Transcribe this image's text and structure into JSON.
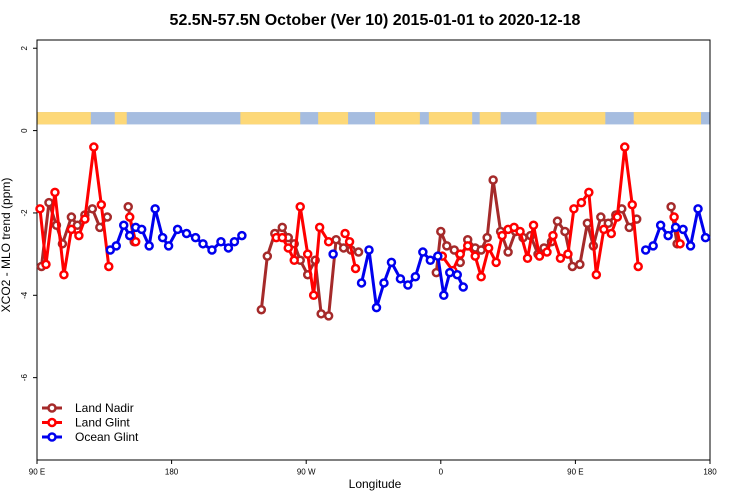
{
  "chart_data": {
    "type": "line",
    "title": "52.5N-57.5N October (Ver 10)   2015-01-01 to 2020-12-18",
    "xlabel": "Longitude",
    "ylabel": "XCO2 - MLO trend (ppm)",
    "x_ticks": [
      {
        "value": 90,
        "label": "90 E"
      },
      {
        "value": 180,
        "label": "180"
      },
      {
        "value": 270,
        "label": "90 W"
      },
      {
        "value": 360,
        "label": "0"
      },
      {
        "value": 450,
        "label": "90 E"
      },
      {
        "value": 540,
        "label": "180"
      }
    ],
    "y_ticks": [
      {
        "value": 2,
        "label": "2"
      },
      {
        "value": 0,
        "label": "0"
      },
      {
        "value": -2,
        "label": "-2"
      },
      {
        "value": -4,
        "label": "-4"
      },
      {
        "value": -6,
        "label": "-6"
      }
    ],
    "xlim": [
      90,
      540
    ],
    "ylim": [
      -8,
      2.2
    ],
    "land_mask_band": {
      "y_range": [
        0.15,
        0.45
      ],
      "land_color": "#fdd878",
      "ocean_color": "#a6bde0",
      "land_segments": [
        [
          90,
          126
        ],
        [
          142,
          150
        ],
        [
          226,
          266
        ],
        [
          278,
          298
        ],
        [
          316,
          346
        ],
        [
          352,
          381
        ],
        [
          386,
          400
        ],
        [
          424,
          470
        ],
        [
          489,
          534
        ]
      ]
    },
    "legend": {
      "position": "bottom-left"
    },
    "series": [
      {
        "name": "Land Nadir",
        "color": "#a52a2a",
        "points": [
          [
            93,
            -3.3
          ],
          [
            98,
            -1.75
          ],
          [
            103,
            -2.3
          ],
          [
            107,
            -2.75
          ],
          [
            113,
            -2.1
          ],
          [
            117,
            -2.3
          ],
          [
            122,
            -2.05
          ],
          [
            127,
            -1.9
          ],
          [
            132,
            -2.35
          ],
          [
            137,
            -2.1
          ],
          [
            151,
            -1.85
          ],
          [
            155,
            -2.7
          ],
          [
            240,
            -4.35
          ],
          [
            244,
            -3.05
          ],
          [
            249,
            -2.5
          ],
          [
            254,
            -2.35
          ],
          [
            258,
            -2.6
          ],
          [
            262,
            -2.75
          ],
          [
            266,
            -3.15
          ],
          [
            271,
            -3.5
          ],
          [
            276,
            -3.15
          ],
          [
            280,
            -4.45
          ],
          [
            285,
            -4.5
          ],
          [
            290,
            -2.65
          ],
          [
            295,
            -2.85
          ],
          [
            300,
            -2.9
          ],
          [
            305,
            -2.95
          ],
          [
            357,
            -3.45
          ],
          [
            360,
            -2.45
          ],
          [
            364,
            -2.8
          ],
          [
            369,
            -2.9
          ],
          [
            373,
            -3.2
          ],
          [
            378,
            -2.65
          ],
          [
            383,
            -2.85
          ],
          [
            387,
            -2.9
          ],
          [
            391,
            -2.6
          ],
          [
            395,
            -1.2
          ],
          [
            400,
            -2.45
          ],
          [
            405,
            -2.95
          ],
          [
            410,
            -2.45
          ],
          [
            415,
            -2.6
          ],
          [
            420,
            -2.55
          ],
          [
            425,
            -3.0
          ],
          [
            429,
            -2.85
          ],
          [
            434,
            -2.7
          ],
          [
            438,
            -2.2
          ],
          [
            443,
            -2.45
          ],
          [
            448,
            -3.3
          ],
          [
            453,
            -3.25
          ],
          [
            458,
            -2.25
          ],
          [
            462,
            -2.8
          ],
          [
            467,
            -2.1
          ],
          [
            472,
            -2.25
          ],
          [
            477,
            -2.05
          ],
          [
            481,
            -1.9
          ],
          [
            486,
            -2.35
          ],
          [
            491,
            -2.15
          ],
          [
            514,
            -1.85
          ],
          [
            518,
            -2.75
          ]
        ]
      },
      {
        "name": "Land Glint",
        "color": "#ff0000",
        "points": [
          [
            92,
            -1.9
          ],
          [
            96,
            -3.25
          ],
          [
            102,
            -1.5
          ],
          [
            108,
            -3.5
          ],
          [
            113,
            -2.4
          ],
          [
            118,
            -2.55
          ],
          [
            122,
            -2.15
          ],
          [
            128,
            -0.4
          ],
          [
            133,
            -1.8
          ],
          [
            138,
            -3.3
          ],
          [
            152,
            -2.1
          ],
          [
            156,
            -2.7
          ],
          [
            250,
            -2.6
          ],
          [
            254,
            -2.6
          ],
          [
            258,
            -2.85
          ],
          [
            262,
            -3.15
          ],
          [
            266,
            -1.85
          ],
          [
            271,
            -3.0
          ],
          [
            275,
            -4.0
          ],
          [
            279,
            -2.35
          ],
          [
            285,
            -2.7
          ],
          [
            296,
            -2.5
          ],
          [
            299,
            -2.7
          ],
          [
            303,
            -3.35
          ],
          [
            361,
            -3.05
          ],
          [
            368,
            -3.4
          ],
          [
            373,
            -3.0
          ],
          [
            378,
            -2.8
          ],
          [
            383,
            -3.05
          ],
          [
            387,
            -3.55
          ],
          [
            392,
            -2.85
          ],
          [
            397,
            -3.2
          ],
          [
            401,
            -2.55
          ],
          [
            405,
            -2.4
          ],
          [
            409,
            -2.35
          ],
          [
            413,
            -2.45
          ],
          [
            418,
            -3.1
          ],
          [
            422,
            -2.3
          ],
          [
            426,
            -3.05
          ],
          [
            431,
            -2.95
          ],
          [
            435,
            -2.55
          ],
          [
            440,
            -3.1
          ],
          [
            445,
            -3.0
          ],
          [
            449,
            -1.9
          ],
          [
            454,
            -1.75
          ],
          [
            459,
            -1.5
          ],
          [
            464,
            -3.5
          ],
          [
            469,
            -2.4
          ],
          [
            474,
            -2.5
          ],
          [
            478,
            -2.1
          ],
          [
            483,
            -0.4
          ],
          [
            488,
            -1.8
          ],
          [
            492,
            -3.3
          ],
          [
            516,
            -2.1
          ],
          [
            520,
            -2.75
          ]
        ]
      },
      {
        "name": "Ocean Glint",
        "color": "#0000ee",
        "points": [
          [
            139,
            -2.9
          ],
          [
            143,
            -2.8
          ],
          [
            148,
            -2.3
          ],
          [
            152,
            -2.55
          ],
          [
            156,
            -2.35
          ],
          [
            160,
            -2.4
          ],
          [
            165,
            -2.8
          ],
          [
            169,
            -1.9
          ],
          [
            174,
            -2.6
          ],
          [
            178,
            -2.8
          ],
          [
            184,
            -2.4
          ],
          [
            190,
            -2.5
          ],
          [
            196,
            -2.6
          ],
          [
            201,
            -2.75
          ],
          [
            207,
            -2.9
          ],
          [
            213,
            -2.7
          ],
          [
            218,
            -2.85
          ],
          [
            222,
            -2.7
          ],
          [
            227,
            -2.55
          ],
          [
            288,
            -3.0
          ],
          [
            307,
            -3.7
          ],
          [
            312,
            -2.9
          ],
          [
            317,
            -4.3
          ],
          [
            322,
            -3.7
          ],
          [
            327,
            -3.2
          ],
          [
            333,
            -3.6
          ],
          [
            338,
            -3.75
          ],
          [
            343,
            -3.55
          ],
          [
            348,
            -2.95
          ],
          [
            353,
            -3.15
          ],
          [
            358,
            -3.05
          ],
          [
            362,
            -4.0
          ],
          [
            366,
            -3.45
          ],
          [
            371,
            -3.5
          ],
          [
            375,
            -3.8
          ],
          [
            497,
            -2.9
          ],
          [
            502,
            -2.8
          ],
          [
            507,
            -2.3
          ],
          [
            512,
            -2.55
          ],
          [
            517,
            -2.35
          ],
          [
            522,
            -2.4
          ],
          [
            527,
            -2.8
          ],
          [
            532,
            -1.9
          ],
          [
            537,
            -2.6
          ]
        ]
      }
    ]
  }
}
